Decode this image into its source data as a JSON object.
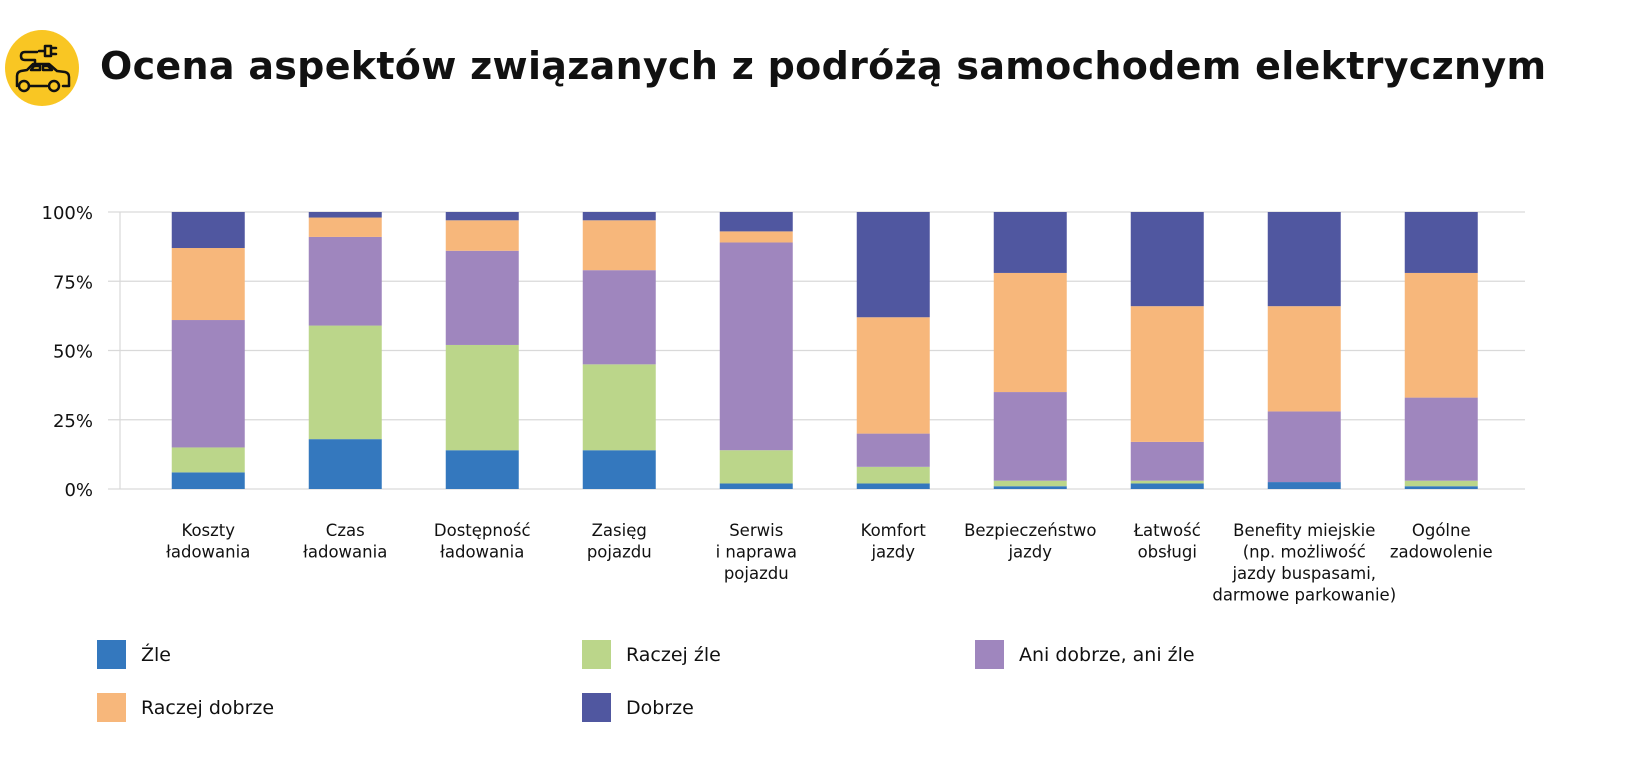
{
  "header": {
    "title": "Ocena aspektów związanych z podróżą samochodem elektrycznym",
    "icon": "electric-car-icon"
  },
  "chart_data": {
    "type": "bar",
    "stacked": true,
    "title": "Ocena aspektów związanych z podróżą samochodem elektrycznym",
    "xlabel": "",
    "ylabel": "",
    "ylim": [
      0,
      100
    ],
    "yticks": [
      "0%",
      "25%",
      "50%",
      "75%",
      "100%"
    ],
    "grid": true,
    "legend_position": "bottom",
    "categories": [
      [
        "Koszty",
        "ładowania"
      ],
      [
        "Czas",
        "ładowania"
      ],
      [
        "Dostępność",
        "ładowania"
      ],
      [
        "Zasięg",
        "pojazdu"
      ],
      [
        "Serwis",
        "i naprawa",
        "pojazdu"
      ],
      [
        "Komfort",
        "jazdy"
      ],
      [
        "Bezpieczeństwo",
        "jazdy"
      ],
      [
        "Łatwość",
        "obsługi"
      ],
      [
        "Benefity miejskie",
        "(np. możliwość",
        "jazdy buspasami,",
        "darmowe parkowanie)"
      ],
      [
        "Ogólne",
        "zadowolenie"
      ]
    ],
    "series": [
      {
        "name": "Źle",
        "color": "#3478be",
        "values": [
          6,
          18,
          14,
          14,
          2,
          2,
          1,
          2,
          2.5,
          1
        ]
      },
      {
        "name": "Raczej źle",
        "color": "#bbd68a",
        "values": [
          9,
          41,
          38,
          31,
          12,
          6,
          2,
          1,
          0,
          2
        ]
      },
      {
        "name": "Ani dobrze, ani źle",
        "color": "#9f86be",
        "values": [
          46,
          32,
          34,
          34,
          75,
          12,
          32,
          14,
          25.5,
          30
        ]
      },
      {
        "name": "Raczej dobrze",
        "color": "#f7b77b",
        "values": [
          26,
          7,
          11,
          18,
          4,
          42,
          43,
          49,
          38,
          45
        ]
      },
      {
        "name": "Dobrze",
        "color": "#5057a0",
        "values": [
          13,
          2,
          3,
          3,
          7,
          38,
          22,
          34,
          34,
          22
        ]
      }
    ]
  }
}
